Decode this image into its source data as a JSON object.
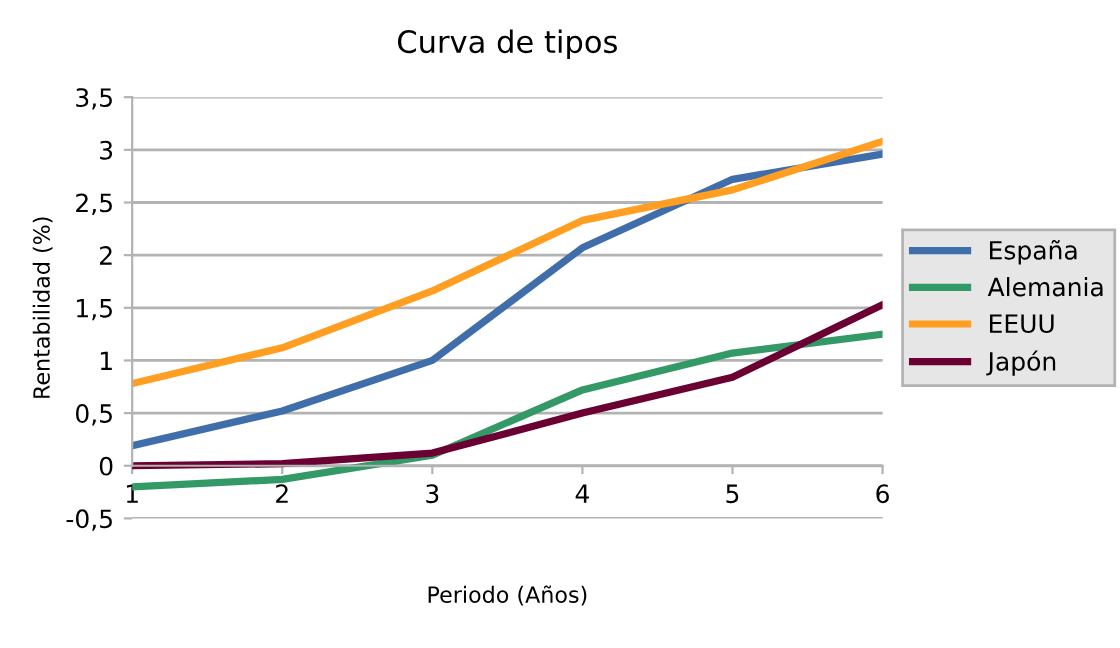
{
  "chart_data": {
    "type": "line",
    "title": "Curva de tipos",
    "xlabel": "Periodo (Años)",
    "ylabel": "Rentabilidad (%)",
    "categories": [
      "1",
      "2",
      "3",
      "4",
      "5",
      "6"
    ],
    "series": [
      {
        "name": "España",
        "color": "#3f6eab",
        "values": [
          0.19,
          0.52,
          1.0,
          2.07,
          2.72,
          2.96
        ]
      },
      {
        "name": "Alemania",
        "color": "#339966",
        "values": [
          -0.2,
          -0.13,
          0.1,
          0.72,
          1.07,
          1.25
        ]
      },
      {
        "name": "EEUU",
        "color": "#ff9e20",
        "values": [
          0.78,
          1.12,
          1.66,
          2.33,
          2.62,
          3.08
        ]
      },
      {
        "name": "Japón",
        "color": "#6b0033",
        "values": [
          0.0,
          0.02,
          0.12,
          0.5,
          0.84,
          1.53
        ]
      }
    ],
    "ylim": [
      -0.5,
      3.5
    ],
    "yticks": [
      {
        "value": -0.5,
        "label": "-0,5"
      },
      0,
      {
        "value": 0.5,
        "label": "0,5"
      },
      1,
      {
        "value": 1.5,
        "label": "1,5"
      },
      2,
      {
        "value": 2.5,
        "label": "2,5"
      },
      3,
      {
        "value": 3.5,
        "label": "3,5"
      }
    ],
    "grid": "y",
    "legend": "right",
    "marker": "none",
    "line_style": "solid"
  }
}
